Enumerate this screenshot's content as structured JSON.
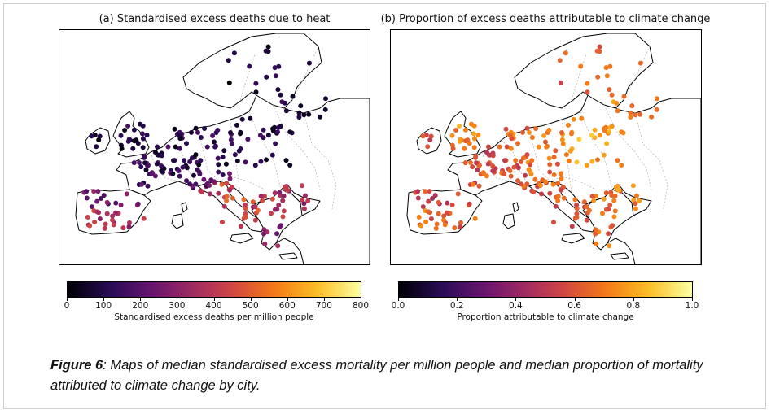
{
  "panels": [
    {
      "title": "(a) Standardised excess deaths due to heat",
      "colorbar": {
        "ticks": [
          "0",
          "100",
          "200",
          "300",
          "400",
          "500",
          "600",
          "700",
          "800"
        ],
        "min": 0,
        "max": 800,
        "label": "Standardised excess deaths per million people"
      }
    },
    {
      "title": "(b) Proportion of excess deaths attributable to climate change",
      "colorbar": {
        "ticks": [
          "0.0",
          "0.2",
          "0.4",
          "0.6",
          "0.8",
          "1.0"
        ],
        "min": 0,
        "max": 1,
        "label": "Proportion attributable to climate change"
      }
    }
  ],
  "colormap": "inferno",
  "colors": {
    "coastline": "#000000",
    "borders": "#bbbbbb",
    "background": "#ffffff"
  },
  "caption": {
    "figure_label": "Figure 6",
    "text": ": Maps of median standardised excess mortality per million people and median proportion of mortality attributed to climate change by city."
  },
  "region_values": {
    "panel_a": {
      "uk": 90,
      "ireland": 50,
      "scandinavia": 60,
      "benelux": 120,
      "france": 140,
      "germany": 110,
      "poland": 100,
      "baltic": 80,
      "iberia_north": 250,
      "iberia_south": 380,
      "italy_north": 420,
      "italy_south": 450,
      "balkans": 380,
      "romania": 340,
      "greece": 300,
      "switzerland_austria": 200
    },
    "panel_b": {
      "uk": 0.72,
      "ireland": 0.55,
      "scandinavia": 0.62,
      "benelux": 0.58,
      "france": 0.6,
      "germany": 0.68,
      "poland": 0.78,
      "baltic": 0.7,
      "iberia_north": 0.55,
      "iberia_south": 0.65,
      "italy_north": 0.62,
      "italy_south": 0.6,
      "balkans": 0.66,
      "romania": 0.7,
      "greece": 0.68,
      "switzerland_austria": 0.64
    }
  }
}
